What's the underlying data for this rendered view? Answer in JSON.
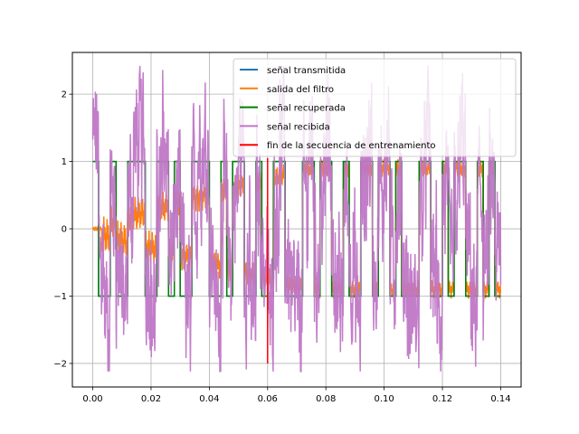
{
  "chart_data": {
    "type": "line",
    "xlim": [
      -0.007,
      0.147
    ],
    "ylim": [
      -2.35,
      2.62
    ],
    "x_ticks": [
      0.0,
      0.02,
      0.04,
      0.06,
      0.08,
      0.1,
      0.12,
      0.14
    ],
    "x_tick_labels": [
      "0.00",
      "0.02",
      "0.04",
      "0.06",
      "0.08",
      "0.10",
      "0.12",
      "0.14"
    ],
    "y_ticks": [
      -2,
      -1,
      0,
      1,
      2
    ],
    "y_tick_labels": [
      "−2",
      "−1",
      "0",
      "1",
      "2"
    ],
    "grid": true,
    "legend_position": "top-right",
    "symbol_period": 0.002,
    "x_end": 0.14,
    "symbols": [
      1,
      -1,
      -1,
      1,
      -1,
      -1,
      1,
      1,
      1,
      -1,
      -1,
      1,
      1,
      -1,
      1,
      -1,
      -1,
      1,
      1,
      1,
      -1,
      -1,
      1,
      -1,
      1,
      1,
      -1,
      -1,
      1,
      -1,
      -1,
      1,
      1,
      -1,
      -1,
      -1,
      1,
      1,
      -1,
      1,
      1,
      -1,
      -1,
      1,
      -1,
      -1,
      1,
      1,
      -1,
      1,
      1,
      -1,
      1,
      -1,
      -1,
      -1,
      1,
      1,
      -1,
      -1,
      1,
      -1,
      1,
      1,
      -1,
      -1,
      1,
      -1,
      1,
      -1
    ],
    "training_end": {
      "x": 0.06,
      "y_range": [
        -2.0,
        1.05
      ]
    },
    "series": [
      {
        "name": "señal transmitida",
        "color": "#1f77b4"
      },
      {
        "name": "salida del filtro",
        "color": "#ff7f0e"
      },
      {
        "name": "señal recuperada",
        "color": "#008000"
      },
      {
        "name": "señal recibida",
        "color": "#bf77c6"
      },
      {
        "name": "fin de la secuencia de entrenamiento",
        "color": "#ff0000"
      }
    ]
  }
}
